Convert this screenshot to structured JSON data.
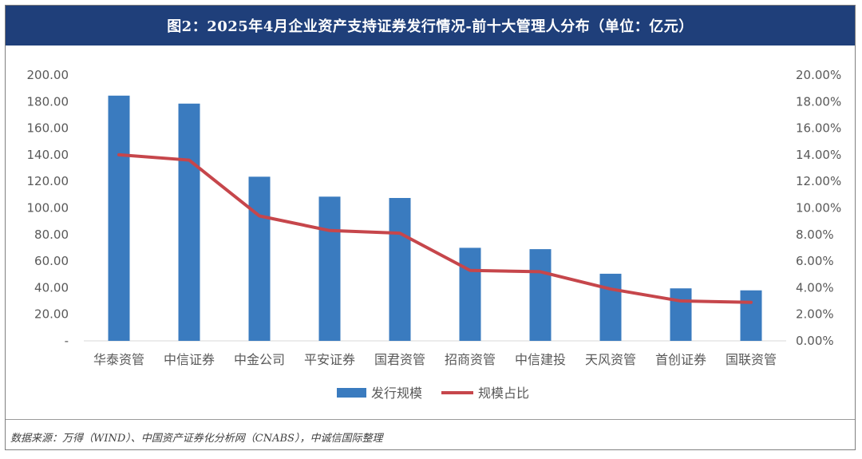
{
  "title": "图2：2025年4月企业资产支持证券发行情况-前十大管理人分布（单位：亿元）",
  "source": "数据来源：万得（WIND）、中国资产证券化分析网（CNABS），中诚信国际整理",
  "colors": {
    "title_bg": "#1f3f7a",
    "bar": "#3a7bbf",
    "line": "#c6464b",
    "axis_text": "#595959"
  },
  "chart_data": {
    "type": "bar",
    "categories": [
      "华泰资管",
      "中信证券",
      "中金公司",
      "平安证券",
      "国君资管",
      "招商资管",
      "中信建投",
      "天风资管",
      "首创证券",
      "国联资管"
    ],
    "series": [
      {
        "name": "发行规模",
        "type": "bar",
        "axis": "left",
        "values": [
          184.5,
          178.5,
          123.5,
          108.5,
          107.5,
          70.0,
          69.0,
          50.5,
          39.5,
          38.0
        ]
      },
      {
        "name": "规模占比",
        "type": "line",
        "axis": "right",
        "values": [
          0.14,
          0.136,
          0.094,
          0.083,
          0.081,
          0.053,
          0.052,
          0.039,
          0.03,
          0.029
        ]
      }
    ],
    "y_left": {
      "ylim": [
        0,
        200
      ],
      "ticks": [
        "-",
        "20.00",
        "40.00",
        "60.00",
        "80.00",
        "100.00",
        "120.00",
        "140.00",
        "160.00",
        "180.00",
        "200.00"
      ]
    },
    "y_right": {
      "ylim": [
        0,
        0.2
      ],
      "ticks": [
        "0.00%",
        "2.00%",
        "4.00%",
        "6.00%",
        "8.00%",
        "10.00%",
        "12.00%",
        "14.00%",
        "16.00%",
        "18.00%",
        "20.00%"
      ]
    },
    "grid": false,
    "legend": "bottom-center"
  }
}
